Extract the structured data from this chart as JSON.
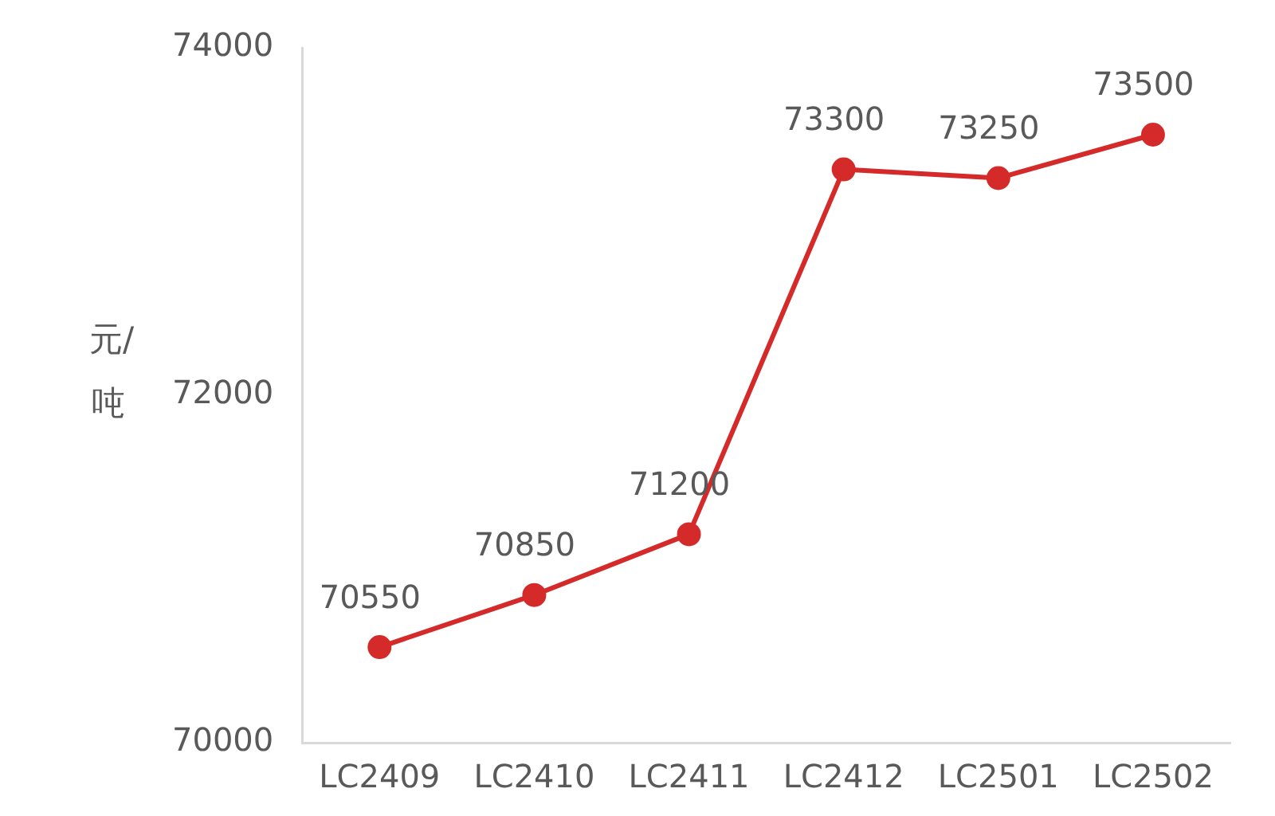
{
  "chart_data": {
    "type": "line",
    "ylabel": "元/吨",
    "categories": [
      "LC2409",
      "LC2410",
      "LC2411",
      "LC2412",
      "LC2501",
      "LC2502"
    ],
    "series": [
      {
        "color": "#d42a2a",
        "values": [
          70550,
          70850,
          71200,
          73300,
          73250,
          73500
        ]
      }
    ],
    "ylim": [
      70000,
      74000
    ],
    "yticks": [
      70000,
      72000,
      74000
    ],
    "grid": false,
    "legend": false,
    "marker": "circle",
    "line_style": "solid",
    "data_labels": true
  }
}
